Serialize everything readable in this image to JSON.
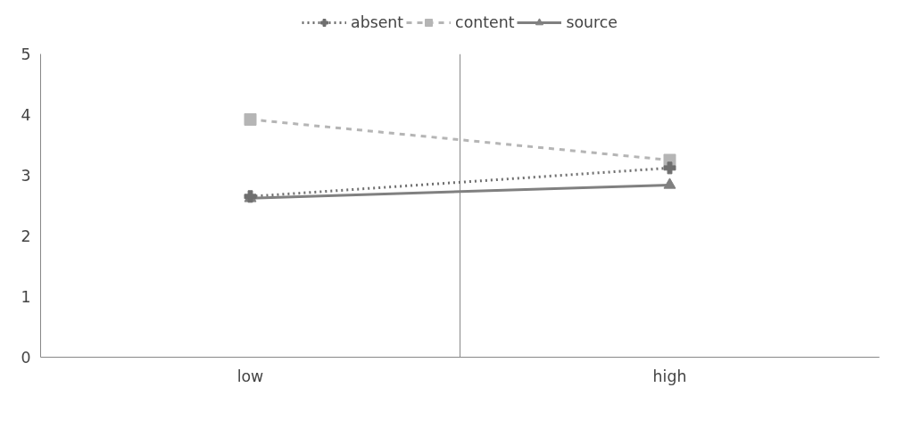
{
  "chart_data": {
    "type": "line",
    "categories": [
      "low",
      "high"
    ],
    "series": [
      {
        "name": "absent",
        "color": "#6f6f6f",
        "values": [
          2.65,
          3.12
        ],
        "marker": "cross",
        "line_style": "dotted"
      },
      {
        "name": "content",
        "color": "#b5b5b5",
        "values": [
          3.92,
          3.25
        ],
        "marker": "square",
        "line_style": "dashed"
      },
      {
        "name": "source",
        "color": "#808080",
        "values": [
          2.62,
          2.84
        ],
        "marker": "triangle",
        "line_style": "solid"
      }
    ],
    "ylim": [
      0,
      5
    ],
    "yticks": [
      0,
      1,
      2,
      3,
      4,
      5
    ],
    "grid": "x",
    "legend": "top"
  }
}
